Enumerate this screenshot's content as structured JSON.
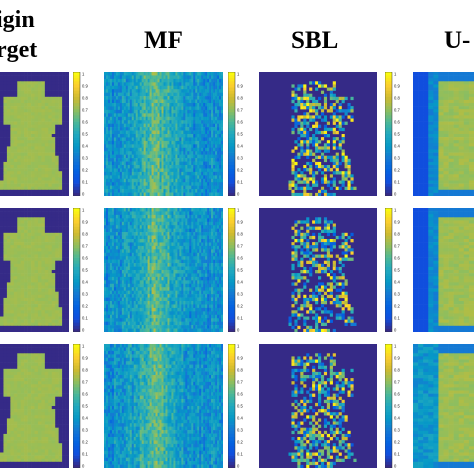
{
  "column_titles": {
    "origin": [
      "igin",
      "rget"
    ],
    "mf": "MF",
    "sbl": "SBL",
    "unet": "U-"
  },
  "colorbar": {
    "ticks": [
      "1",
      "0.9",
      "0.8",
      "0.7",
      "0.6",
      "0.5",
      "0.4",
      "0.3",
      "0.2",
      "0.1",
      "0"
    ],
    "range": [
      0,
      1
    ],
    "colormap": "parula"
  },
  "colors": {
    "low": "#352a87",
    "mid": "#21a9be",
    "high": "#f9fb0e",
    "body_green": "#a5be2d"
  },
  "chart_data": {
    "type": "heatmap",
    "grid": {
      "rows": 3,
      "columns": 4
    },
    "column_labels": [
      "Origin Target",
      "MF",
      "SBL",
      "U-Net"
    ],
    "value_range": [
      0,
      1
    ],
    "description_values": {
      "origin_target_background": 0.0,
      "origin_target_body": 0.72
    }
  }
}
